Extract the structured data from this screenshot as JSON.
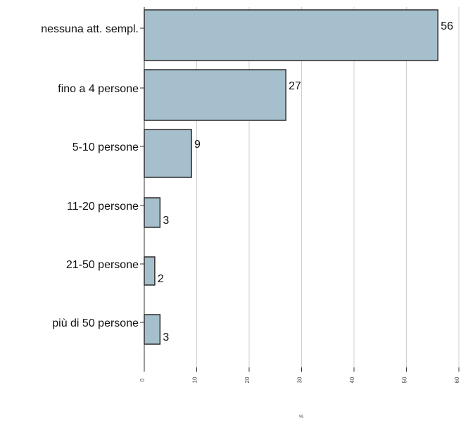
{
  "chart_data": {
    "type": "bar",
    "orientation": "horizontal",
    "categories": [
      "nessuna att. sempl.",
      "fino a 4 persone",
      "5-10 persone",
      "11-20 persone",
      "21-50 persone",
      "più di 50 persone"
    ],
    "values": [
      56,
      27,
      9,
      3,
      2,
      3
    ],
    "xlim": [
      0,
      60
    ],
    "xticks": [
      0,
      10,
      20,
      30,
      40,
      50,
      60
    ],
    "xtick_labels": [
      "0",
      "10",
      "20",
      "30",
      "40",
      "50",
      "60"
    ],
    "x_axis_note": "%",
    "grid": "vertical",
    "bar_color": "#a6bfcc",
    "bar_edge_color": "#2b2b2b",
    "grid_color": "#cfcfcf"
  }
}
